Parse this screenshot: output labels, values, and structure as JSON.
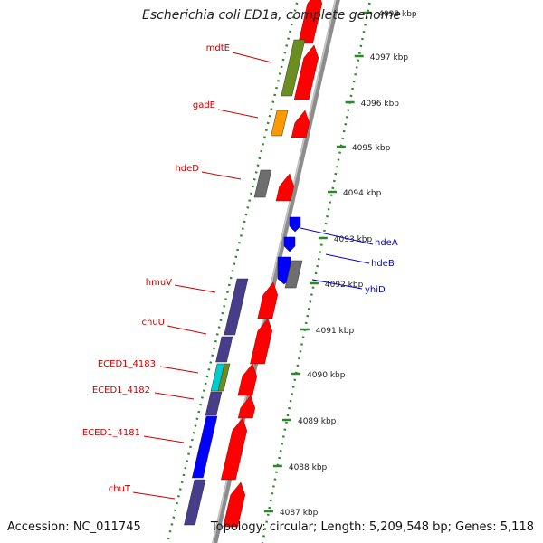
{
  "title": "Escherichia coli ED1a, complete genome",
  "footer": {
    "accession": "Accession: NC_011745",
    "summary": "Topology: circular; Length: 5,209,548 bp; Genes: 5,118"
  },
  "colors": {
    "backbone": "#8c8c8c",
    "tick": "#2a8a2a",
    "gene_red": "#ff0000",
    "olive": "#6b8e23",
    "orange": "#ff9900",
    "gray": "#6e6e6e",
    "blue": "#0000ff",
    "slate": "#483d8b",
    "cyan": "#00cccc",
    "label_red": "#cc0000",
    "label_blue": "#0000cc"
  },
  "scale": {
    "unit": "kbp",
    "ticks": [
      {
        "kbp": 4098,
        "label": "4098 kbp"
      },
      {
        "kbp": 4097,
        "label": "4097 kbp"
      },
      {
        "kbp": 4096,
        "label": "4096 kbp"
      },
      {
        "kbp": 4095,
        "label": "4095 kbp"
      },
      {
        "kbp": 4094,
        "label": "4094 kbp"
      },
      {
        "kbp": 4093,
        "label": "4093 kbp"
      },
      {
        "kbp": 4092,
        "label": "4092 kbp"
      },
      {
        "kbp": 4091,
        "label": "4091 kbp"
      },
      {
        "kbp": 4090,
        "label": "4090 kbp"
      },
      {
        "kbp": 4089,
        "label": "4089 kbp"
      },
      {
        "kbp": 4088,
        "label": "4088 kbp"
      },
      {
        "kbp": 4087,
        "label": "4087 kbp"
      }
    ]
  },
  "genes": [
    {
      "label": "mdtE",
      "strand": "plus",
      "color": "olive"
    },
    {
      "label": "gadE",
      "strand": "plus",
      "color": "orange"
    },
    {
      "label": "hdeD",
      "strand": "plus",
      "color": "gray"
    },
    {
      "label": "hdeA",
      "strand": "minus",
      "color": "blue"
    },
    {
      "label": "hdeB",
      "strand": "minus",
      "color": "blue"
    },
    {
      "label": "yhiD",
      "strand": "minus",
      "color": "gray"
    },
    {
      "label": "hmuV",
      "strand": "plus",
      "color": "slate"
    },
    {
      "label": "chuU",
      "strand": "plus",
      "color": "slate"
    },
    {
      "label": "ECED1_4183",
      "strand": "plus",
      "color": "cyan"
    },
    {
      "label": "ECED1_4182",
      "strand": "plus",
      "color": "slate"
    },
    {
      "label": "ECED1_4181",
      "strand": "plus",
      "color": "blue"
    },
    {
      "label": "chuT",
      "strand": "plus",
      "color": "slate"
    }
  ]
}
